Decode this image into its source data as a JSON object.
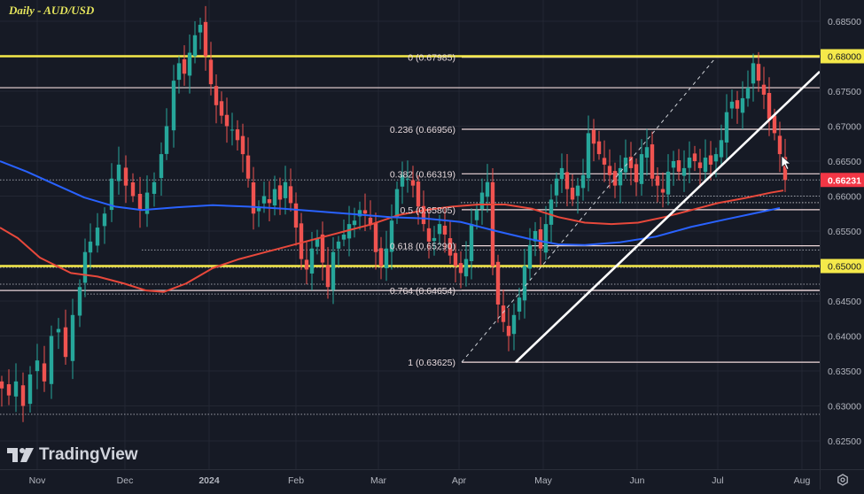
{
  "header": {
    "title": "Daily - AUD/USD"
  },
  "branding": {
    "logo_text": "TradingView",
    "logo_icon": "tradingview-logo-icon"
  },
  "price_axis": {
    "ticks": [
      "0.68500",
      "0.68000",
      "0.67500",
      "0.67000",
      "0.66500",
      "0.66000",
      "0.65500",
      "0.65000",
      "0.64500",
      "0.64000",
      "0.63500",
      "0.63000",
      "0.62500"
    ],
    "current_price_label": "0.66231",
    "current_price_color": "#f23645",
    "highlighted_levels": [
      {
        "label": "0.68000",
        "color": "#f5e94a"
      },
      {
        "label": "0.65000",
        "color": "#f5e94a"
      }
    ]
  },
  "time_axis": {
    "labels": [
      "Nov",
      "Dec",
      "2024",
      "Feb",
      "Mar",
      "Apr",
      "May",
      "Jun",
      "Jul",
      "Aug"
    ],
    "settings_icon": "settings-hexagon-icon"
  },
  "fibonacci": {
    "levels": [
      {
        "label": "0 (0.67985)",
        "price": 0.67985
      },
      {
        "label": "0.236 (0.66956)",
        "price": 0.66956
      },
      {
        "label": "0.382 (0.66319)",
        "price": 0.66319
      },
      {
        "label": "0.5 (0.65805)",
        "price": 0.65805
      },
      {
        "label": "0.618 (0.65290)",
        "price": 0.6529
      },
      {
        "label": "0.764 (0.64654)",
        "price": 0.64654
      },
      {
        "label": "1 (0.63625)",
        "price": 0.63625
      }
    ]
  },
  "colors": {
    "background": "#161a25",
    "up_candle": "#26a69a",
    "down_candle": "#ef5350",
    "ma_red": "#e8483b",
    "ma_blue": "#2962ff",
    "horizontal_yellow": "#f5e94a",
    "fib_line": "#f0d9dc",
    "trendline": "#ffffff",
    "axis_text": "#b2b5be",
    "grid": "#232733"
  },
  "chart_data": {
    "type": "candlestick",
    "title": "Daily - AUD/USD",
    "xlabel": "",
    "ylabel": "",
    "x_ticks": [
      "Nov",
      "Dec",
      "2024",
      "Feb",
      "Mar",
      "Apr",
      "May",
      "Jun",
      "Jul",
      "Aug"
    ],
    "y_ticks": [
      0.685,
      0.68,
      0.675,
      0.67,
      0.665,
      0.66,
      0.655,
      0.65,
      0.645,
      0.64,
      0.635,
      0.63,
      0.625
    ],
    "ylim": [
      0.6225,
      0.6875
    ],
    "grid": true,
    "last_price": 0.66231,
    "horizontal_levels": [
      0.68,
      0.675,
      0.65
    ],
    "fib_retracement": {
      "high": 0.67985,
      "low": 0.63625,
      "levels": {
        "0": 0.67985,
        "0.236": 0.66956,
        "0.382": 0.66319,
        "0.5": 0.65805,
        "0.618": 0.6529,
        "0.764": 0.64654,
        "1": 0.63625
      }
    },
    "series": [
      {
        "name": "MA (red, shorter)",
        "approx_points": [
          [
            "Oct",
            0.6555
          ],
          [
            "Nov",
            0.6505
          ],
          [
            "mid-Dec",
            0.6465
          ],
          [
            "Jan",
            0.6498
          ],
          [
            "Feb",
            0.6515
          ],
          [
            "Mar",
            0.6548
          ],
          [
            "Apr",
            0.659
          ],
          [
            "May",
            0.6585
          ],
          [
            "Jun",
            0.656
          ],
          [
            "Jul",
            0.6575
          ],
          [
            "late-Jul",
            0.6607
          ]
        ]
      },
      {
        "name": "MA (blue, longer)",
        "approx_points": [
          [
            "Oct",
            0.665
          ],
          [
            "Nov",
            0.662
          ],
          [
            "Dec",
            0.659
          ],
          [
            "Jan",
            0.6585
          ],
          [
            "Feb",
            0.658
          ],
          [
            "Mar",
            0.657
          ],
          [
            "Apr",
            0.656
          ],
          [
            "May",
            0.653
          ],
          [
            "Jun",
            0.653
          ],
          [
            "Jul",
            0.6555
          ],
          [
            "late-Jul",
            0.6583
          ]
        ]
      }
    ],
    "candles_approx": [
      {
        "period": "late-Oct",
        "open": 0.633,
        "high": 0.637,
        "low": 0.628,
        "close": 0.632
      },
      {
        "period": "early-Nov",
        "open": 0.638,
        "high": 0.651,
        "low": 0.635,
        "close": 0.649
      },
      {
        "period": "mid-Nov",
        "open": 0.641,
        "high": 0.654,
        "low": 0.64,
        "close": 0.653
      },
      {
        "period": "late-Nov",
        "open": 0.653,
        "high": 0.667,
        "low": 0.652,
        "close": 0.664
      },
      {
        "period": "early-Dec",
        "open": 0.666,
        "high": 0.667,
        "low": 0.657,
        "close": 0.66
      },
      {
        "period": "mid-Dec",
        "open": 0.661,
        "high": 0.678,
        "low": 0.66,
        "close": 0.677
      },
      {
        "period": "late-Dec",
        "open": 0.677,
        "high": 0.687,
        "low": 0.676,
        "close": 0.684
      },
      {
        "period": "early-Jan",
        "open": 0.681,
        "high": 0.682,
        "low": 0.671,
        "close": 0.673
      },
      {
        "period": "mid-Jan",
        "open": 0.67,
        "high": 0.672,
        "low": 0.656,
        "close": 0.658
      },
      {
        "period": "early-Feb",
        "open": 0.659,
        "high": 0.662,
        "low": 0.65,
        "close": 0.652
      },
      {
        "period": "mid-Feb",
        "open": 0.651,
        "high": 0.656,
        "low": 0.645,
        "close": 0.652
      },
      {
        "period": "early-Mar",
        "open": 0.652,
        "high": 0.666,
        "low": 0.651,
        "close": 0.663
      },
      {
        "period": "mid-Mar",
        "open": 0.662,
        "high": 0.664,
        "low": 0.651,
        "close": 0.654
      },
      {
        "period": "early-Apr",
        "open": 0.652,
        "high": 0.664,
        "low": 0.649,
        "close": 0.662
      },
      {
        "period": "mid-Apr",
        "open": 0.662,
        "high": 0.664,
        "low": 0.636,
        "close": 0.642
      },
      {
        "period": "late-Apr",
        "open": 0.642,
        "high": 0.654,
        "low": 0.64,
        "close": 0.652
      },
      {
        "period": "early-May",
        "open": 0.652,
        "high": 0.667,
        "low": 0.649,
        "close": 0.662
      },
      {
        "period": "mid-May",
        "open": 0.664,
        "high": 0.671,
        "low": 0.662,
        "close": 0.668
      },
      {
        "period": "early-Jun",
        "open": 0.665,
        "high": 0.67,
        "low": 0.657,
        "close": 0.664
      },
      {
        "period": "mid-Jun",
        "open": 0.665,
        "high": 0.671,
        "low": 0.659,
        "close": 0.668
      },
      {
        "period": "early-Jul",
        "open": 0.668,
        "high": 0.676,
        "low": 0.665,
        "close": 0.675
      },
      {
        "period": "mid-Jul",
        "open": 0.676,
        "high": 0.68,
        "low": 0.673,
        "close": 0.674
      },
      {
        "period": "late-Jul",
        "open": 0.674,
        "high": 0.675,
        "low": 0.662,
        "close": 0.6623
      }
    ]
  }
}
